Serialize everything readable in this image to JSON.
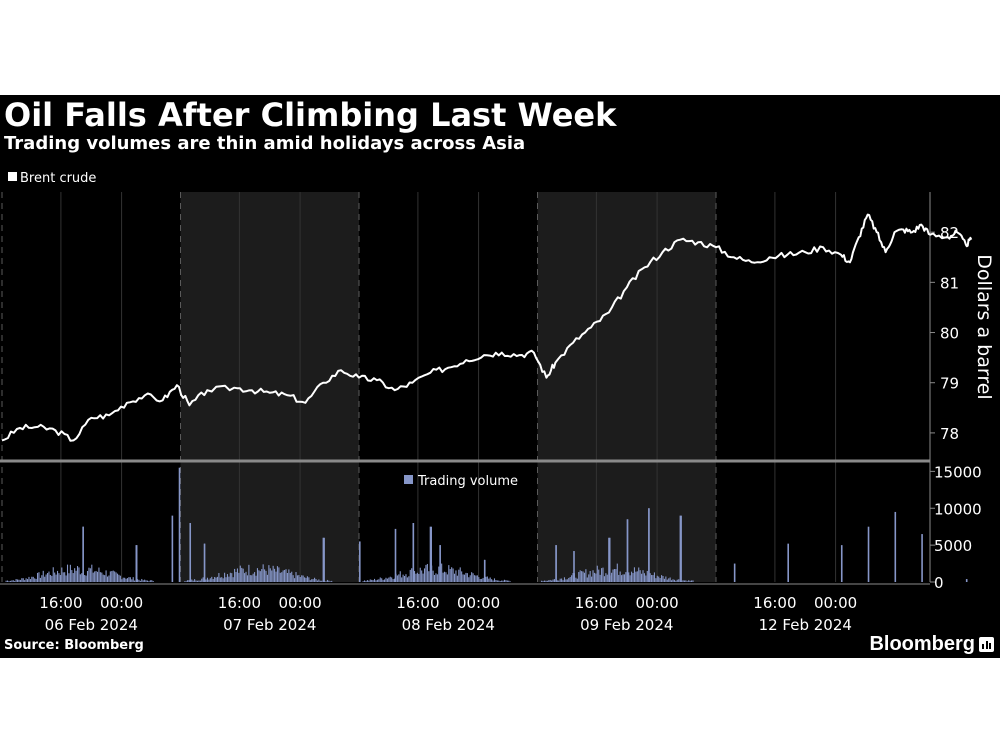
{
  "chart_data": {
    "type": "line",
    "title": "Oil Falls After Climbing Last Week",
    "subtitle": "Trading volumes are thin amid holidays across Asia",
    "source": "Source: Bloomberg",
    "brand": "Bloomberg",
    "colors": {
      "background": "#000000",
      "price_line": "#ffffff",
      "volume_bars": "#8696c8",
      "shaded_session": "#1c1c1c",
      "grid": "#3a3a3a",
      "axis_text": "#ffffff"
    },
    "x_axis": {
      "tick_labels": [
        "16:00",
        "00:00",
        "16:00",
        "00:00",
        "16:00",
        "00:00",
        "16:00",
        "00:00",
        "16:00",
        "00:00"
      ],
      "date_labels": [
        "06 Feb 2024",
        "07 Feb 2024",
        "08 Feb 2024",
        "09 Feb 2024",
        "12 Feb 2024"
      ],
      "shaded_days": [
        "07 Feb 2024",
        "09 Feb 2024"
      ]
    },
    "price": {
      "legend": "Brent crude",
      "ylabel": "Dollars a barrel",
      "ylim": [
        77.5,
        82.8
      ],
      "yticks": [
        78,
        79,
        80,
        81,
        82
      ],
      "points": [
        [
          0.0,
          77.85
        ],
        [
          0.1,
          78.1
        ],
        [
          0.2,
          78.12
        ],
        [
          0.3,
          78.05
        ],
        [
          0.4,
          77.85
        ],
        [
          0.5,
          78.3
        ],
        [
          0.6,
          78.35
        ],
        [
          0.7,
          78.6
        ],
        [
          0.8,
          78.75
        ],
        [
          0.9,
          78.65
        ],
        [
          0.98,
          78.95
        ],
        [
          1.05,
          78.55
        ],
        [
          1.15,
          78.85
        ],
        [
          1.3,
          78.9
        ],
        [
          1.4,
          78.85
        ],
        [
          1.5,
          78.8
        ],
        [
          1.6,
          78.75
        ],
        [
          1.7,
          78.6
        ],
        [
          1.8,
          79.0
        ],
        [
          1.9,
          79.25
        ],
        [
          2.0,
          79.1
        ],
        [
          2.1,
          79.05
        ],
        [
          2.2,
          78.85
        ],
        [
          2.3,
          79.0
        ],
        [
          2.4,
          79.2
        ],
        [
          2.5,
          79.3
        ],
        [
          2.6,
          79.45
        ],
        [
          2.7,
          79.55
        ],
        [
          2.8,
          79.6
        ],
        [
          2.9,
          79.55
        ],
        [
          2.98,
          79.6
        ],
        [
          3.05,
          79.1
        ],
        [
          3.1,
          79.4
        ],
        [
          3.2,
          79.8
        ],
        [
          3.3,
          80.1
        ],
        [
          3.4,
          80.4
        ],
        [
          3.5,
          80.9
        ],
        [
          3.6,
          81.3
        ],
        [
          3.7,
          81.6
        ],
        [
          3.8,
          81.85
        ],
        [
          3.9,
          81.8
        ],
        [
          4.0,
          81.7
        ],
        [
          4.1,
          81.5
        ],
        [
          4.2,
          81.4
        ],
        [
          4.3,
          81.5
        ],
        [
          4.4,
          81.55
        ],
        [
          4.5,
          81.6
        ],
        [
          4.6,
          81.7
        ],
        [
          4.7,
          81.55
        ],
        [
          4.75,
          81.4
        ],
        [
          4.8,
          81.9
        ],
        [
          4.85,
          82.35
        ],
        [
          4.9,
          82.0
        ],
        [
          4.95,
          81.6
        ],
        [
          5.0,
          82.0
        ],
        [
          5.05,
          82.05
        ],
        [
          5.1,
          82.0
        ],
        [
          5.15,
          82.15
        ],
        [
          5.2,
          81.95
        ],
        [
          5.3,
          81.9
        ],
        [
          5.35,
          82.0
        ],
        [
          5.4,
          81.75
        ],
        [
          5.43,
          81.85
        ]
      ]
    },
    "volume": {
      "legend": "Trading volume",
      "ylim": [
        0,
        16000
      ],
      "yticks": [
        0,
        5000,
        10000,
        15000
      ],
      "ytick_labels": [
        "0",
        "5000",
        "10000",
        "15000"
      ],
      "peaks": [
        [
          0.45,
          7500
        ],
        [
          0.75,
          5000
        ],
        [
          0.95,
          9000
        ],
        [
          0.99,
          15500
        ],
        [
          1.05,
          8000
        ],
        [
          1.13,
          5200
        ],
        [
          1.8,
          6000
        ],
        [
          2.0,
          5500
        ],
        [
          2.2,
          7200
        ],
        [
          2.3,
          8000
        ],
        [
          2.4,
          7500
        ],
        [
          2.45,
          5000
        ],
        [
          2.7,
          3000
        ],
        [
          3.1,
          5000
        ],
        [
          3.2,
          4200
        ],
        [
          3.4,
          6000
        ],
        [
          3.5,
          8500
        ],
        [
          3.62,
          10000
        ],
        [
          3.8,
          9000
        ],
        [
          4.1,
          2500
        ],
        [
          4.4,
          5200
        ],
        [
          4.7,
          5000
        ],
        [
          4.85,
          7500
        ],
        [
          5.0,
          9500
        ],
        [
          5.15,
          6500
        ],
        [
          5.4,
          400
        ]
      ]
    }
  }
}
